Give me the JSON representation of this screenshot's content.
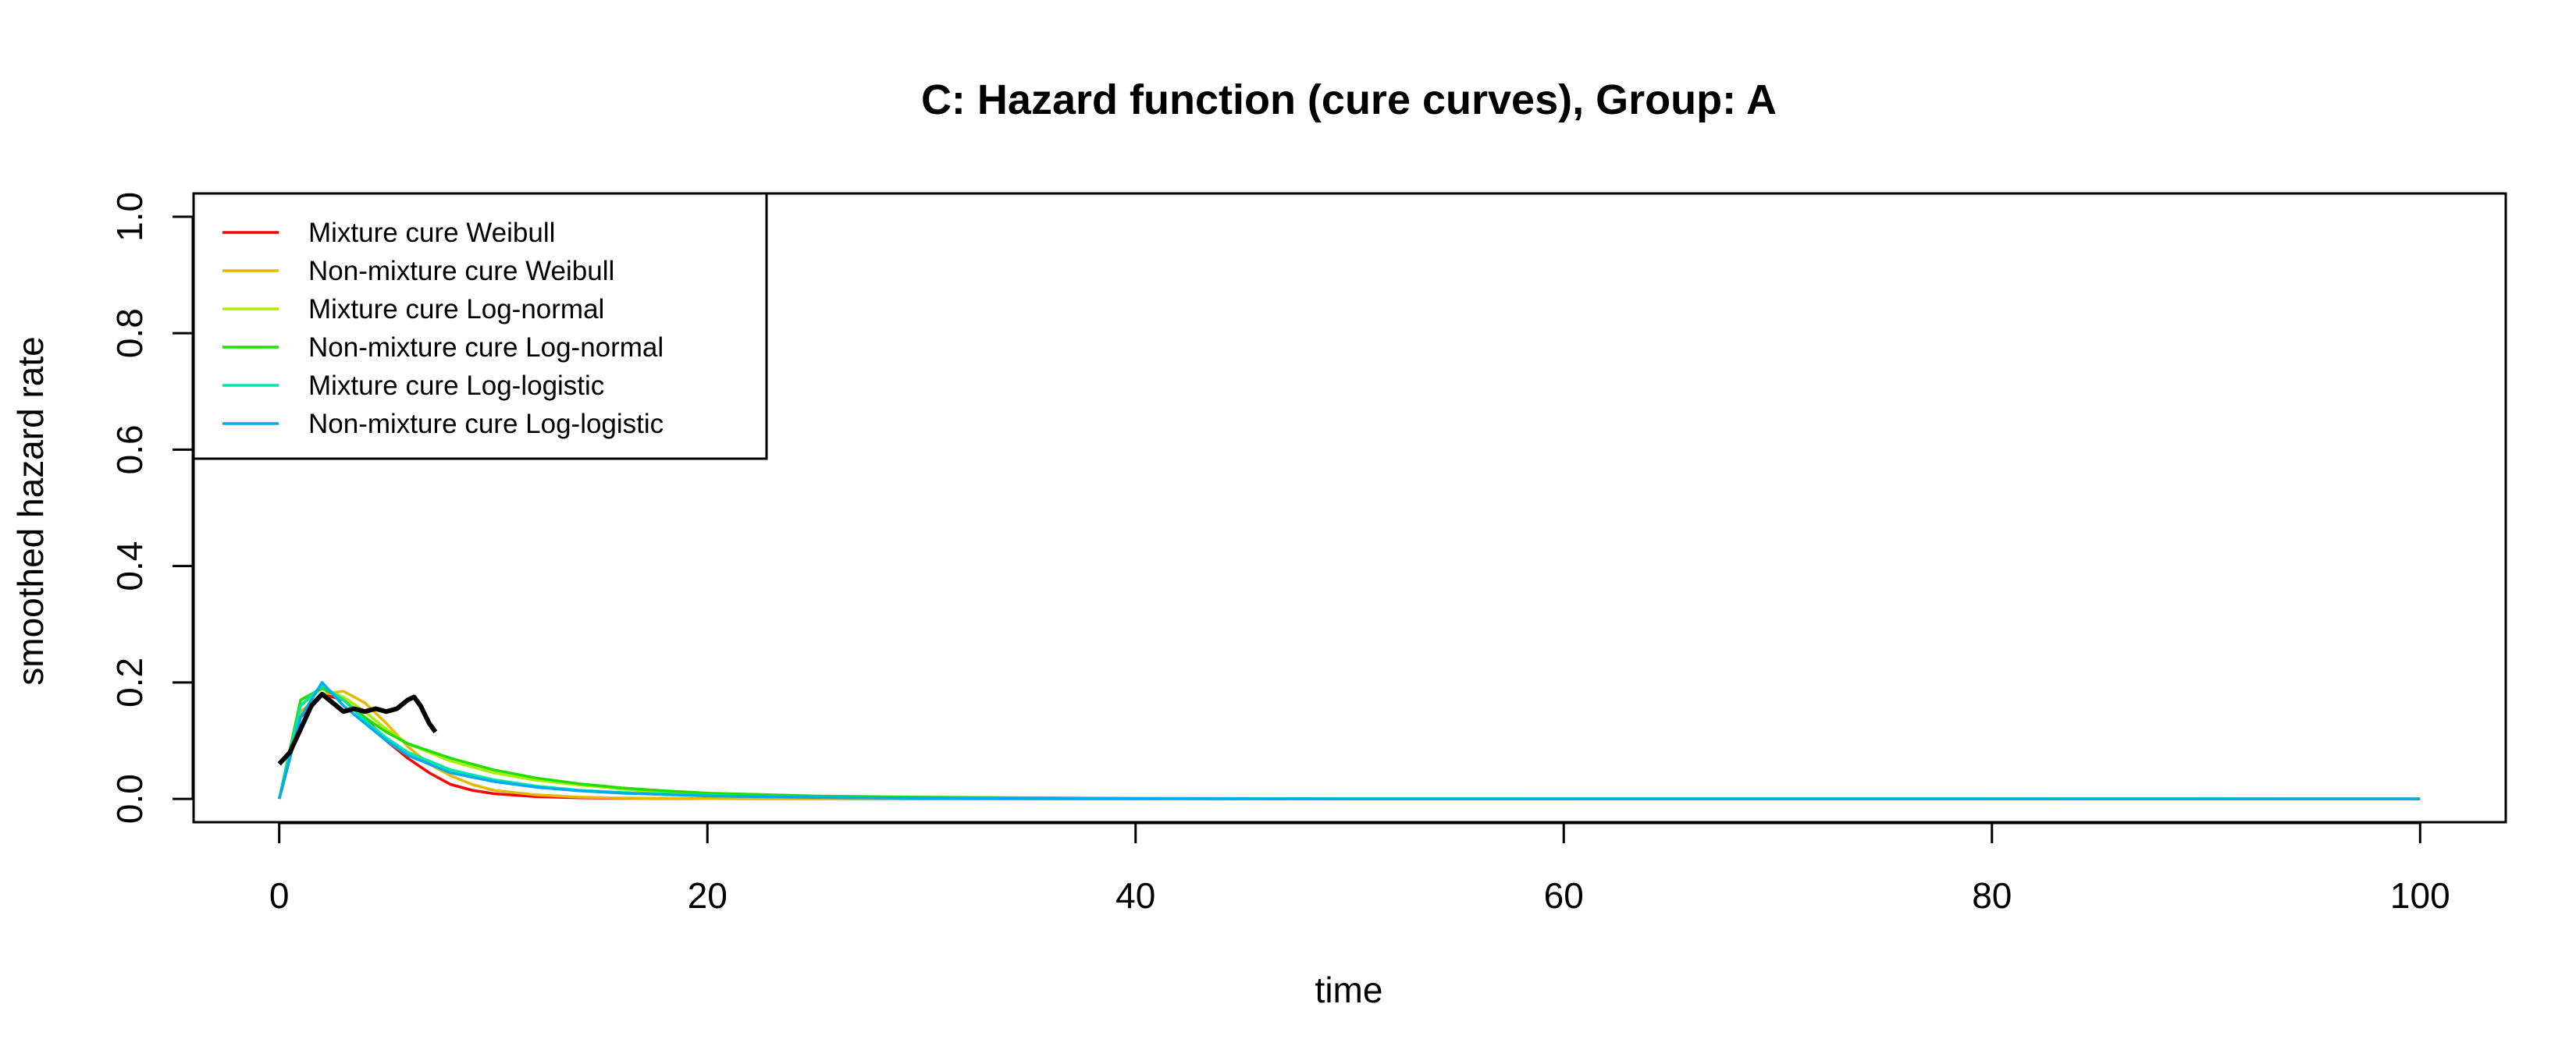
{
  "chart_data": {
    "type": "line",
    "title": "C: Hazard function (cure curves), Group: A",
    "xlabel": "time",
    "ylabel": "smoothed hazard rate",
    "xlim": [
      -4,
      104
    ],
    "ylim": [
      -0.04,
      1.04
    ],
    "xticks": [
      0,
      20,
      40,
      60,
      80,
      100
    ],
    "yticks": [
      0.0,
      0.2,
      0.4,
      0.6,
      0.8,
      1.0
    ],
    "xtick_labels": [
      "0",
      "20",
      "40",
      "60",
      "80",
      "100"
    ],
    "ytick_labels": [
      "0.0",
      "0.2",
      "0.4",
      "0.6",
      "0.8",
      "1.0"
    ],
    "grid": false,
    "legend_position": "top-left",
    "observed": {
      "color": "#000000",
      "x": [
        0,
        0.5,
        1,
        1.5,
        2,
        2.5,
        3,
        3.5,
        4,
        4.5,
        5,
        5.5,
        6,
        6.3,
        6.6,
        7,
        7.3
      ],
      "y": [
        0.06,
        0.08,
        0.12,
        0.16,
        0.18,
        0.165,
        0.15,
        0.155,
        0.15,
        0.155,
        0.15,
        0.155,
        0.17,
        0.175,
        0.16,
        0.13,
        0.115
      ]
    },
    "series": [
      {
        "name": "Mixture cure Weibull",
        "color": "#FF0000",
        "x": [
          0,
          1,
          2,
          3,
          4,
          5,
          6,
          7,
          8,
          9,
          10,
          12,
          14,
          16,
          20,
          30,
          50,
          100
        ],
        "y": [
          0,
          0.14,
          0.18,
          0.17,
          0.14,
          0.1,
          0.07,
          0.045,
          0.025,
          0.015,
          0.009,
          0.004,
          0.002,
          0.001,
          0.0005,
          0,
          0,
          0
        ]
      },
      {
        "name": "Non-mixture cure Weibull",
        "color": "#E6B800",
        "x": [
          0,
          1,
          2,
          3,
          4,
          5,
          6,
          7,
          8,
          9,
          10,
          12,
          14,
          16,
          20,
          30,
          50,
          100
        ],
        "y": [
          0,
          0.15,
          0.18,
          0.185,
          0.165,
          0.13,
          0.09,
          0.06,
          0.04,
          0.025,
          0.015,
          0.007,
          0.003,
          0.0015,
          0.0005,
          0,
          0,
          0
        ]
      },
      {
        "name": "Mixture cure Log-normal",
        "color": "#AAEE00",
        "x": [
          0,
          1,
          2,
          3,
          4,
          5,
          6,
          8,
          10,
          12,
          14,
          16,
          18,
          20,
          25,
          30,
          40,
          50,
          100
        ],
        "y": [
          0,
          0.16,
          0.19,
          0.175,
          0.15,
          0.12,
          0.095,
          0.065,
          0.045,
          0.032,
          0.024,
          0.017,
          0.012,
          0.009,
          0.004,
          0.002,
          0.0005,
          0.0002,
          0
        ]
      },
      {
        "name": "Non-mixture cure Log-normal",
        "color": "#22DD00",
        "x": [
          0,
          1,
          2,
          3,
          4,
          5,
          6,
          8,
          10,
          12,
          14,
          16,
          18,
          20,
          25,
          30,
          40,
          50,
          100
        ],
        "y": [
          0,
          0.17,
          0.19,
          0.17,
          0.14,
          0.115,
          0.095,
          0.07,
          0.05,
          0.036,
          0.026,
          0.019,
          0.014,
          0.01,
          0.005,
          0.003,
          0.001,
          0.0003,
          0
        ]
      },
      {
        "name": "Mixture cure Log-logistic",
        "color": "#00E5AA",
        "x": [
          0,
          1,
          2,
          3,
          4,
          5,
          6,
          8,
          10,
          12,
          14,
          16,
          20,
          25,
          30,
          40,
          50,
          100
        ],
        "y": [
          0,
          0.16,
          0.195,
          0.17,
          0.135,
          0.105,
          0.08,
          0.05,
          0.033,
          0.022,
          0.015,
          0.011,
          0.006,
          0.003,
          0.0015,
          0.0005,
          0.0002,
          0
        ]
      },
      {
        "name": "Non-mixture cure Log-logistic",
        "color": "#00AAEE",
        "x": [
          0,
          1,
          2,
          3,
          4,
          5,
          6,
          8,
          10,
          12,
          14,
          16,
          20,
          25,
          30,
          40,
          50,
          100
        ],
        "y": [
          0,
          0.14,
          0.2,
          0.16,
          0.13,
          0.1,
          0.075,
          0.045,
          0.03,
          0.02,
          0.014,
          0.01,
          0.005,
          0.0025,
          0.0012,
          0.0004,
          0.0001,
          0
        ]
      }
    ]
  }
}
